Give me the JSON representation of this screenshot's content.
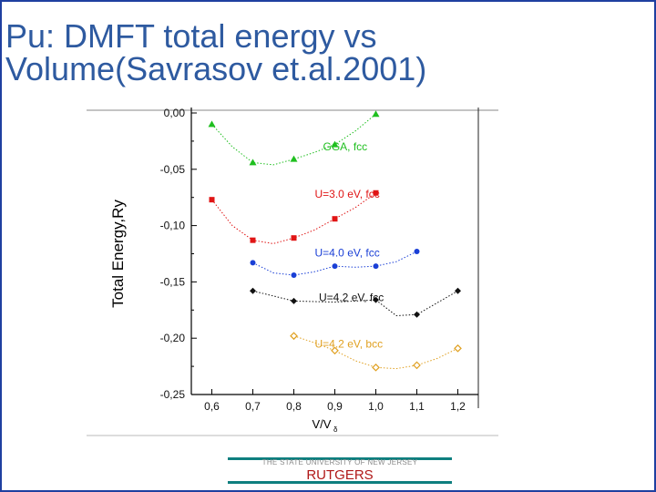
{
  "slide": {
    "title_line1": "Pu: DMFT total energy vs",
    "title_line2": "Volume(Savrasov et.al.2001)",
    "accent_color": "#2e5aa0"
  },
  "footer": {
    "university": "THE STATE UNIVERSITY OF NEW JERSEY",
    "name": "RUTGERS",
    "bar_color": "#0e7f7f",
    "name_color": "#b01818"
  },
  "chart_data": {
    "type": "line",
    "ylabel": "Total Energy,Ry",
    "xlabel_main": "V/V",
    "xlabel_sub": "δ",
    "xlim": [
      0.55,
      1.25
    ],
    "ylim": [
      -0.25,
      0.0
    ],
    "x_ticks": [
      "0,6",
      "0,7",
      "0,8",
      "0,9",
      "1,0",
      "1,1",
      "1,2"
    ],
    "x_tick_values": [
      0.6,
      0.7,
      0.8,
      0.9,
      1.0,
      1.1,
      1.2
    ],
    "y_ticks": [
      "0,00",
      "-0,05",
      "-0,10",
      "-0,15",
      "-0,20",
      "-0,25"
    ],
    "y_tick_values": [
      0.0,
      -0.05,
      -0.1,
      -0.15,
      -0.2,
      -0.25
    ],
    "grid": false,
    "series": [
      {
        "name": "GGA, fcc",
        "color": "#1fbf1f",
        "marker": "triangle",
        "points": [
          [
            0.6,
            -0.01
          ],
          [
            0.7,
            -0.044
          ],
          [
            0.8,
            -0.041
          ],
          [
            0.9,
            -0.028
          ],
          [
            1.0,
            -0.001
          ]
        ],
        "curve": [
          [
            0.6,
            -0.01
          ],
          [
            0.65,
            -0.03
          ],
          [
            0.7,
            -0.044
          ],
          [
            0.75,
            -0.046
          ],
          [
            0.8,
            -0.041
          ],
          [
            0.85,
            -0.035
          ],
          [
            0.9,
            -0.028
          ],
          [
            0.95,
            -0.016
          ],
          [
            1.0,
            -0.001
          ]
        ]
      },
      {
        "name": "U=3.0 eV, fcc",
        "color": "#e01515",
        "marker": "square",
        "points": [
          [
            0.6,
            -0.077
          ],
          [
            0.7,
            -0.113
          ],
          [
            0.8,
            -0.111
          ],
          [
            0.9,
            -0.094
          ],
          [
            1.0,
            -0.071
          ]
        ],
        "curve": [
          [
            0.6,
            -0.077
          ],
          [
            0.65,
            -0.1
          ],
          [
            0.7,
            -0.113
          ],
          [
            0.75,
            -0.116
          ],
          [
            0.8,
            -0.111
          ],
          [
            0.85,
            -0.104
          ],
          [
            0.9,
            -0.094
          ],
          [
            0.95,
            -0.084
          ],
          [
            1.0,
            -0.071
          ]
        ]
      },
      {
        "name": "U=4.0 eV, fcc",
        "color": "#1a3fd6",
        "marker": "circle",
        "points": [
          [
            0.7,
            -0.133
          ],
          [
            0.8,
            -0.144
          ],
          [
            0.9,
            -0.136
          ],
          [
            1.0,
            -0.136
          ],
          [
            1.1,
            -0.123
          ]
        ],
        "curve": [
          [
            0.7,
            -0.133
          ],
          [
            0.75,
            -0.142
          ],
          [
            0.8,
            -0.144
          ],
          [
            0.85,
            -0.141
          ],
          [
            0.9,
            -0.136
          ],
          [
            0.95,
            -0.137
          ],
          [
            1.0,
            -0.136
          ],
          [
            1.05,
            -0.132
          ],
          [
            1.1,
            -0.123
          ]
        ]
      },
      {
        "name": "U=4.2 eV, fcc",
        "color": "#111111",
        "marker": "diamond",
        "points": [
          [
            0.7,
            -0.158
          ],
          [
            0.8,
            -0.167
          ],
          [
            1.0,
            -0.166
          ],
          [
            1.1,
            -0.179
          ],
          [
            1.2,
            -0.158
          ]
        ],
        "curve": [
          [
            0.7,
            -0.158
          ],
          [
            0.8,
            -0.167
          ],
          [
            0.9,
            -0.168
          ],
          [
            1.0,
            -0.166
          ],
          [
            1.05,
            -0.18
          ],
          [
            1.1,
            -0.179
          ],
          [
            1.2,
            -0.158
          ]
        ]
      },
      {
        "name": "U=4.2 eV, bcc",
        "color": "#e0a020",
        "marker": "open-diamond",
        "points": [
          [
            0.8,
            -0.198
          ],
          [
            0.9,
            -0.211
          ],
          [
            1.0,
            -0.226
          ],
          [
            1.1,
            -0.224
          ],
          [
            1.2,
            -0.209
          ]
        ],
        "curve": [
          [
            0.8,
            -0.198
          ],
          [
            0.85,
            -0.204
          ],
          [
            0.9,
            -0.211
          ],
          [
            0.95,
            -0.22
          ],
          [
            1.0,
            -0.226
          ],
          [
            1.05,
            -0.227
          ],
          [
            1.1,
            -0.224
          ],
          [
            1.15,
            -0.218
          ],
          [
            1.2,
            -0.209
          ]
        ]
      }
    ]
  }
}
